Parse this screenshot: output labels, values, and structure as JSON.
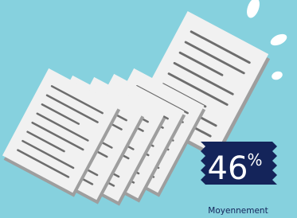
{
  "stat": {
    "value": 46,
    "unit": "%",
    "label": "Moyennement"
  }
}
